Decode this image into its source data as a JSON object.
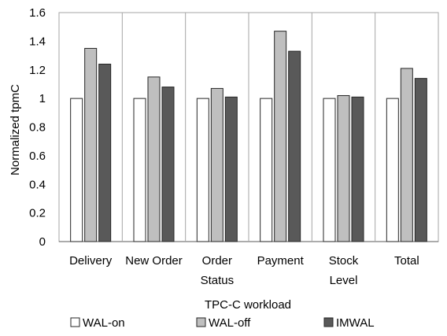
{
  "chart_data": {
    "type": "bar",
    "categories": [
      "Delivery",
      "New Order",
      "Order Status",
      "Payment",
      "Stock Level",
      "Total"
    ],
    "category_lines": [
      [
        "Delivery"
      ],
      [
        "New Order"
      ],
      [
        "Order",
        "Status"
      ],
      [
        "Payment"
      ],
      [
        "Stock",
        "Level"
      ],
      [
        "Total"
      ]
    ],
    "series": [
      {
        "name": "WAL-on",
        "values": [
          1.0,
          1.0,
          1.0,
          1.0,
          1.0,
          1.0
        ],
        "color": "#ffffff"
      },
      {
        "name": "WAL-off",
        "values": [
          1.35,
          1.15,
          1.07,
          1.47,
          1.02,
          1.21
        ],
        "color": "#bfbfbf"
      },
      {
        "name": "IMWAL",
        "values": [
          1.24,
          1.08,
          1.01,
          1.33,
          1.01,
          1.14
        ],
        "color": "#595959"
      }
    ],
    "xlabel": "TPC-C workload",
    "ylabel": "Normalized tpmC",
    "ylim": [
      0,
      1.6
    ],
    "yticks": [
      0,
      0.2,
      0.4,
      0.6,
      0.8,
      1,
      1.2,
      1.4,
      1.6
    ],
    "ytick_labels": [
      "0",
      "0.2",
      "0.4",
      "0.6",
      "0.8",
      "1",
      "1.2",
      "1.4",
      "1.6"
    ],
    "grid": "vertical separators between categories",
    "legend_position": "bottom"
  }
}
